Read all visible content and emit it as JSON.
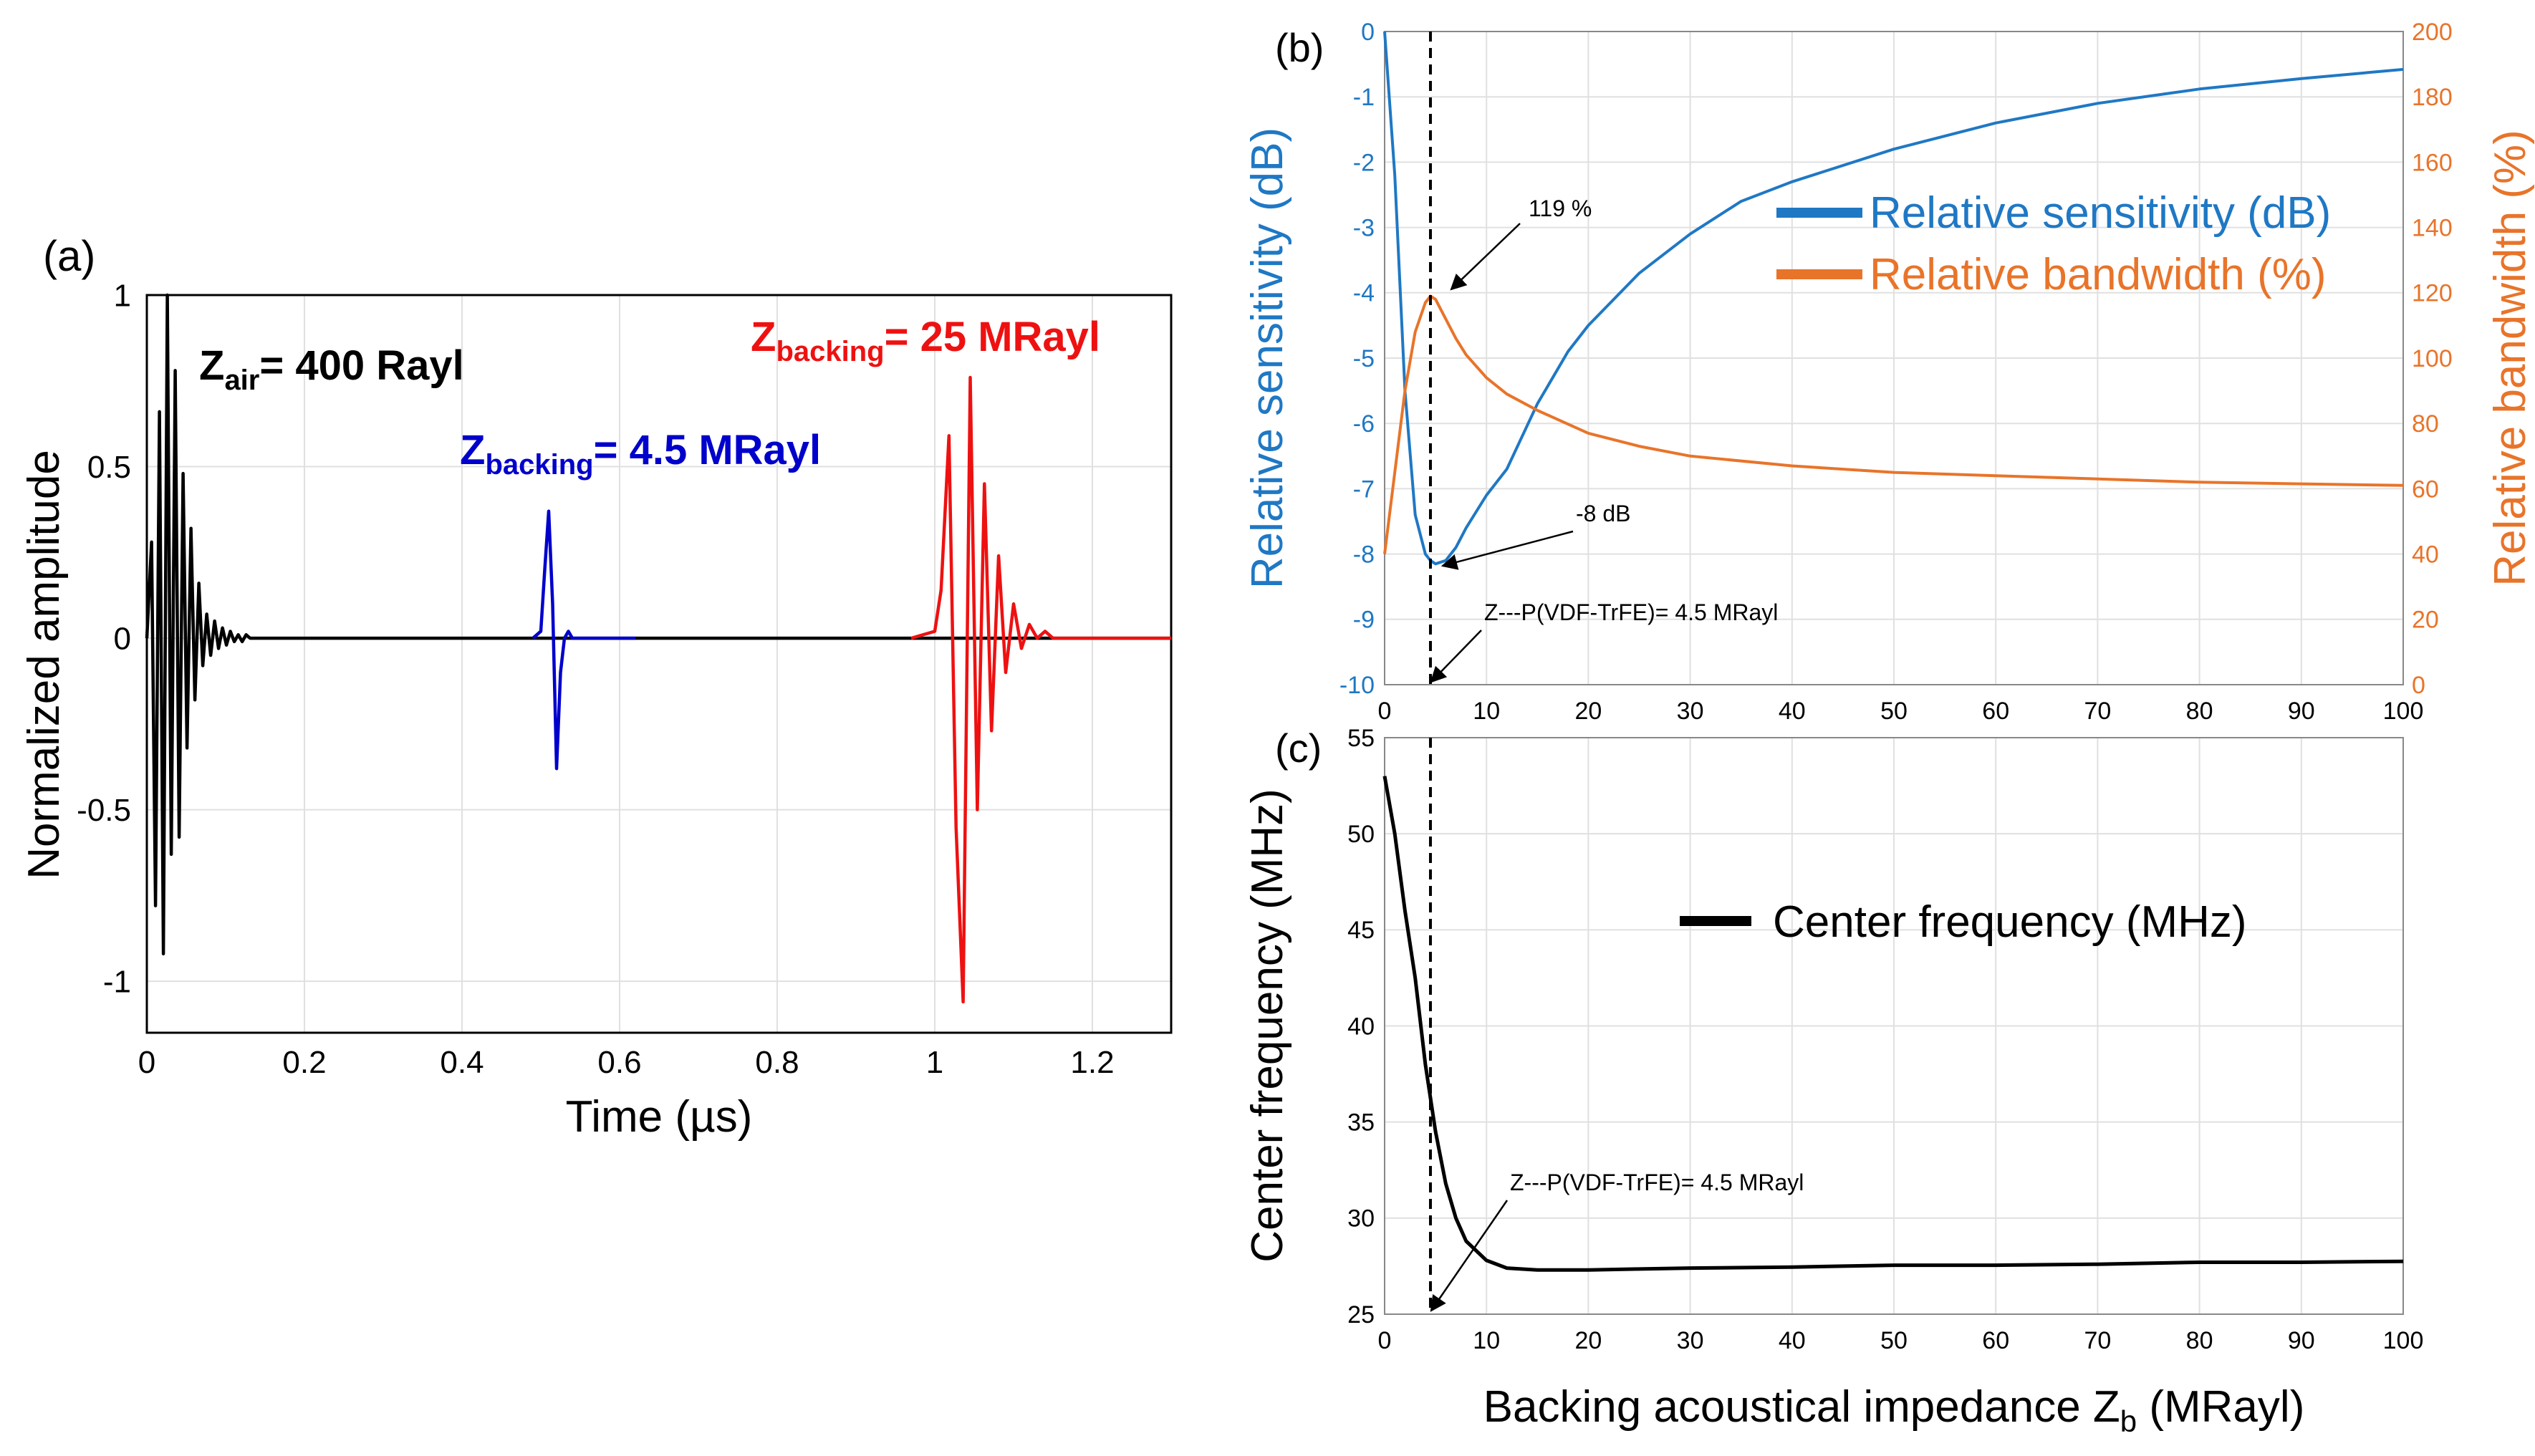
{
  "colors": {
    "black": "#000000",
    "blue_pulse": "#0000CC",
    "red_pulse": "#EE1111",
    "sensitivity": "#1F78C4",
    "bandwidth": "#E8742A",
    "grid": "#E0E0E0"
  },
  "chart_data": [
    {
      "id": "a",
      "type": "line",
      "panel_label": "(a)",
      "xlabel": "Time (µs)",
      "ylabel": "Normalized amplitude",
      "xlim": [
        0,
        1.3
      ],
      "ylim": [
        -1.15,
        1.0
      ],
      "xticks": [
        0,
        0.2,
        0.4,
        0.6,
        0.8,
        1,
        1.2
      ],
      "xtick_labels": [
        "0",
        "0.2",
        "0.4",
        "0.6",
        "0.8",
        "1",
        "1.2"
      ],
      "yticks": [
        -1,
        -0.5,
        0,
        0.5,
        1
      ],
      "ytick_labels": [
        "-1",
        "-0.5",
        "0",
        "0.5",
        "1"
      ],
      "grid": true,
      "annotations": [
        {
          "main": "Z",
          "sub": "air",
          "rest": "= 400 Rayl",
          "color": "black"
        },
        {
          "main": "Z",
          "sub": "backing",
          "rest": "= 4.5 MRayl",
          "color": "blue"
        },
        {
          "main": "Z",
          "sub": "backing",
          "rest": "= 25 MRayl",
          "color": "red"
        }
      ],
      "series": [
        {
          "name": "Z_air = 400 Rayl",
          "color": "black",
          "x": [
            0,
            0.006,
            0.011,
            0.016,
            0.021,
            0.026,
            0.031,
            0.036,
            0.041,
            0.046,
            0.051,
            0.056,
            0.061,
            0.066,
            0.071,
            0.076,
            0.081,
            0.086,
            0.091,
            0.096,
            0.101,
            0.106,
            0.111,
            0.116,
            0.121,
            0.126,
            0.131,
            0.136,
            0.141,
            0.146,
            0.151,
            0.156,
            0.161,
            0.166,
            0.171,
            0.18,
            0.2,
            1.3
          ],
          "values": [
            0,
            0.28,
            -0.78,
            0.66,
            -0.92,
            1.0,
            -0.63,
            0.78,
            -0.58,
            0.48,
            -0.32,
            0.32,
            -0.18,
            0.16,
            -0.08,
            0.07,
            -0.05,
            0.05,
            -0.03,
            0.03,
            -0.02,
            0.02,
            -0.01,
            0.01,
            -0.01,
            0.01,
            0,
            0,
            0,
            0,
            0,
            0,
            0,
            0,
            0,
            0,
            0,
            0
          ]
        },
        {
          "name": "Z_backing = 4.5 MRayl",
          "color": "blue",
          "x": [
            0.49,
            0.5,
            0.505,
            0.51,
            0.515,
            0.52,
            0.525,
            0.53,
            0.535,
            0.54,
            0.55,
            0.56,
            0.62
          ],
          "values": [
            0,
            0.02,
            0.2,
            0.37,
            0.1,
            -0.38,
            -0.1,
            0,
            0.02,
            0,
            0,
            0,
            0
          ]
        },
        {
          "name": "Z_backing = 25 MRayl",
          "color": "red",
          "x": [
            0.97,
            1.0,
            1.008,
            1.018,
            1.027,
            1.036,
            1.045,
            1.054,
            1.063,
            1.072,
            1.081,
            1.09,
            1.1,
            1.11,
            1.12,
            1.13,
            1.14,
            1.15,
            1.16,
            1.17,
            1.3
          ],
          "values": [
            0,
            0.02,
            0.14,
            0.59,
            -0.55,
            -1.06,
            0.76,
            -0.5,
            0.45,
            -0.27,
            0.24,
            -0.1,
            0.1,
            -0.03,
            0.04,
            0,
            0.02,
            0,
            0,
            0,
            0
          ]
        }
      ]
    },
    {
      "id": "b",
      "type": "line",
      "panel_label": "(b)",
      "ylabel_left": "Relative sensitivity (dB)",
      "ylabel_right": "Relative bandwidth (%)",
      "xlim": [
        0,
        100
      ],
      "ylim_left": [
        -10,
        0
      ],
      "ylim_right": [
        0,
        200
      ],
      "xticks": [
        0,
        10,
        20,
        30,
        40,
        50,
        60,
        70,
        80,
        90,
        100
      ],
      "xtick_labels": [
        "0",
        "10",
        "20",
        "30",
        "40",
        "50",
        "60",
        "70",
        "80",
        "90",
        "100"
      ],
      "yticks_left": [
        0,
        -1,
        -2,
        -3,
        -4,
        -5,
        -6,
        -7,
        -8,
        -9,
        -10
      ],
      "ytick_labels_left": [
        "0",
        "-1",
        "-2",
        "-3",
        "-4",
        "-5",
        "-6",
        "-7",
        "-8",
        "-9",
        "-10"
      ],
      "yticks_right": [
        200,
        180,
        160,
        140,
        120,
        100,
        80,
        60,
        40,
        20,
        0
      ],
      "ytick_labels_right": [
        "200",
        "180",
        "160",
        "140",
        "120",
        "100",
        "80",
        "60",
        "40",
        "20",
        "0"
      ],
      "grid": true,
      "legend": [
        "Relative sensitivity (dB)",
        "Relative bandwidth (%)"
      ],
      "legend_position": "top-right",
      "vline_x": 4.5,
      "annotations": [
        "119 %",
        "-8 dB",
        "Z---P(VDF-TrFE)= 4.5 MRayl"
      ],
      "series": [
        {
          "name": "Relative sensitivity (dB)",
          "axis": "left",
          "color": "sensitivity",
          "x": [
            0,
            1,
            2,
            3,
            4,
            4.5,
            5,
            6,
            7,
            8,
            10,
            12,
            15,
            18,
            20,
            25,
            30,
            35,
            40,
            50,
            60,
            70,
            80,
            90,
            100
          ],
          "values": [
            0,
            -2.2,
            -5.5,
            -7.4,
            -8.0,
            -8.1,
            -8.15,
            -8.1,
            -7.9,
            -7.6,
            -7.1,
            -6.7,
            -5.7,
            -4.9,
            -4.5,
            -3.7,
            -3.1,
            -2.6,
            -2.3,
            -1.8,
            -1.4,
            -1.1,
            -0.88,
            -0.72,
            -0.58
          ]
        },
        {
          "name": "Relative bandwidth (%)",
          "axis": "right",
          "color": "bandwidth",
          "x": [
            0,
            1,
            2,
            3,
            4,
            4.5,
            5,
            6,
            7,
            8,
            10,
            12,
            15,
            20,
            25,
            30,
            40,
            50,
            60,
            70,
            80,
            90,
            100
          ],
          "values": [
            40,
            65,
            90,
            108,
            117,
            119,
            118,
            112,
            106,
            101,
            94,
            89,
            84,
            77,
            73,
            70,
            67,
            65,
            64,
            63,
            62,
            61.5,
            61
          ]
        }
      ]
    },
    {
      "id": "c",
      "type": "line",
      "panel_label": "(c)",
      "xlabel": "Backing acoustical impedance Z",
      "xlabel_sub": "b",
      "xlabel_unit": " (MRayl)",
      "ylabel": "Center frequency (MHz)",
      "xlim": [
        0,
        100
      ],
      "ylim": [
        25,
        55
      ],
      "xticks": [
        0,
        10,
        20,
        30,
        40,
        50,
        60,
        70,
        80,
        90,
        100
      ],
      "xtick_labels": [
        "0",
        "10",
        "20",
        "30",
        "40",
        "50",
        "60",
        "70",
        "80",
        "90",
        "100"
      ],
      "yticks": [
        25,
        30,
        35,
        40,
        45,
        50,
        55
      ],
      "ytick_labels": [
        "25",
        "30",
        "35",
        "40",
        "45",
        "50",
        "55"
      ],
      "grid": true,
      "legend": [
        "Center frequency (MHz)"
      ],
      "legend_position": "center-right",
      "vline_x": 4.5,
      "annotations": [
        "Z---P(VDF-TrFE)= 4.5 MRayl"
      ],
      "series": [
        {
          "name": "Center frequency (MHz)",
          "color": "black",
          "x": [
            0,
            1,
            2,
            3,
            4,
            5,
            6,
            7,
            8,
            10,
            12,
            15,
            20,
            25,
            30,
            40,
            45,
            50,
            60,
            70,
            80,
            90,
            100
          ],
          "values": [
            53,
            50,
            46,
            42.5,
            38,
            34.5,
            31.8,
            30,
            28.8,
            27.8,
            27.4,
            27.3,
            27.3,
            27.35,
            27.4,
            27.45,
            27.5,
            27.55,
            27.55,
            27.6,
            27.7,
            27.7,
            27.75
          ]
        }
      ]
    }
  ]
}
